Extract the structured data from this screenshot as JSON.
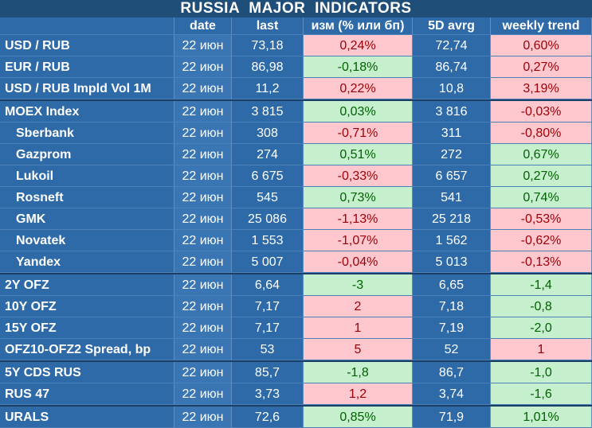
{
  "title": "RUSSIA   MAJOR   INDICATORS",
  "headers": {
    "name": "",
    "date": "date",
    "last": "last",
    "change": "изм (% или бп)",
    "avg": "5D avrg",
    "weekly": "weekly trend"
  },
  "colors": {
    "positive_bg": "#c6efce",
    "positive_text": "#006100",
    "negative_bg": "#ffc7ce",
    "negative_text": "#9c0006",
    "base_blue": "#2e6aa8",
    "title_blue": "#1f4e79"
  },
  "rows": [
    {
      "name": "USD / RUB",
      "sub": false,
      "date": "22 июн",
      "last": "73,18",
      "change": "0,24%",
      "change_sign": "neg",
      "avg": "72,74",
      "weekly": "0,60%",
      "weekly_sign": "neg",
      "sep": false
    },
    {
      "name": "EUR / RUB",
      "sub": false,
      "date": "22 июн",
      "last": "86,98",
      "change": "-0,18%",
      "change_sign": "pos",
      "avg": "86,74",
      "weekly": "0,27%",
      "weekly_sign": "neg",
      "sep": false
    },
    {
      "name": "USD / RUB Impld Vol 1M",
      "sub": false,
      "date": "22 июн",
      "last": "11,2",
      "change": "0,22%",
      "change_sign": "neg",
      "avg": "10,8",
      "weekly": "3,19%",
      "weekly_sign": "neg",
      "sep": false
    },
    {
      "name": "MOEX Index",
      "sub": false,
      "date": "22 июн",
      "last": "3 815",
      "change": "0,03%",
      "change_sign": "pos",
      "avg": "3 816",
      "weekly": "-0,03%",
      "weekly_sign": "neg",
      "sep": true
    },
    {
      "name": "Sberbank",
      "sub": true,
      "date": "22 июн",
      "last": "308",
      "change": "-0,71%",
      "change_sign": "neg",
      "avg": "311",
      "weekly": "-0,80%",
      "weekly_sign": "neg",
      "sep": false
    },
    {
      "name": "Gazprom",
      "sub": true,
      "date": "22 июн",
      "last": "274",
      "change": "0,51%",
      "change_sign": "pos",
      "avg": "272",
      "weekly": "0,67%",
      "weekly_sign": "pos",
      "sep": false
    },
    {
      "name": "Lukoil",
      "sub": true,
      "date": "22 июн",
      "last": "6 675",
      "change": "-0,33%",
      "change_sign": "neg",
      "avg": "6 657",
      "weekly": "0,27%",
      "weekly_sign": "pos",
      "sep": false
    },
    {
      "name": "Rosneft",
      "sub": true,
      "date": "22 июн",
      "last": "545",
      "change": "0,73%",
      "change_sign": "pos",
      "avg": "541",
      "weekly": "0,74%",
      "weekly_sign": "pos",
      "sep": false
    },
    {
      "name": "GMK",
      "sub": true,
      "date": "22 июн",
      "last": "25 086",
      "change": "-1,13%",
      "change_sign": "neg",
      "avg": "25 218",
      "weekly": "-0,53%",
      "weekly_sign": "neg",
      "sep": false
    },
    {
      "name": "Novatek",
      "sub": true,
      "date": "22 июн",
      "last": "1 553",
      "change": "-1,07%",
      "change_sign": "neg",
      "avg": "1 562",
      "weekly": "-0,62%",
      "weekly_sign": "neg",
      "sep": false
    },
    {
      "name": "Yandex",
      "sub": true,
      "date": "22 июн",
      "last": "5 007",
      "change": "-0,04%",
      "change_sign": "neg",
      "avg": "5 013",
      "weekly": "-0,13%",
      "weekly_sign": "neg",
      "sep": false
    },
    {
      "name": "2Y OFZ",
      "sub": false,
      "date": "22 июн",
      "last": "6,64",
      "change": "-3",
      "change_sign": "pos",
      "avg": "6,65",
      "weekly": "-1,4",
      "weekly_sign": "pos",
      "sep": true
    },
    {
      "name": "10Y OFZ",
      "sub": false,
      "date": "22 июн",
      "last": "7,17",
      "change": "2",
      "change_sign": "neg",
      "avg": "7,18",
      "weekly": "-0,8",
      "weekly_sign": "pos",
      "sep": false
    },
    {
      "name": "15Y OFZ",
      "sub": false,
      "date": "22 июн",
      "last": "7,17",
      "change": "1",
      "change_sign": "neg",
      "avg": "7,19",
      "weekly": "-2,0",
      "weekly_sign": "pos",
      "sep": false
    },
    {
      "name": "OFZ10-OFZ2 Spread, bp",
      "sub": false,
      "date": "22 июн",
      "last": "53",
      "change": "5",
      "change_sign": "neg",
      "avg": "52",
      "weekly": "1",
      "weekly_sign": "neg",
      "sep": false
    },
    {
      "name": "5Y CDS RUS",
      "sub": false,
      "date": "22 июн",
      "last": "85,7",
      "change": "-1,8",
      "change_sign": "pos",
      "avg": "86,7",
      "weekly": "-1,0",
      "weekly_sign": "pos",
      "sep": true
    },
    {
      "name": "RUS 47",
      "sub": false,
      "date": "22 июн",
      "last": "3,73",
      "change": "1,2",
      "change_sign": "neg",
      "avg": "3,74",
      "weekly": "-1,6",
      "weekly_sign": "pos",
      "sep": false
    },
    {
      "name": "URALS",
      "sub": false,
      "date": "22 июн",
      "last": "72,6",
      "change": "0,85%",
      "change_sign": "pos",
      "avg": "71,9",
      "weekly": "1,01%",
      "weekly_sign": "pos",
      "sep": true
    }
  ]
}
